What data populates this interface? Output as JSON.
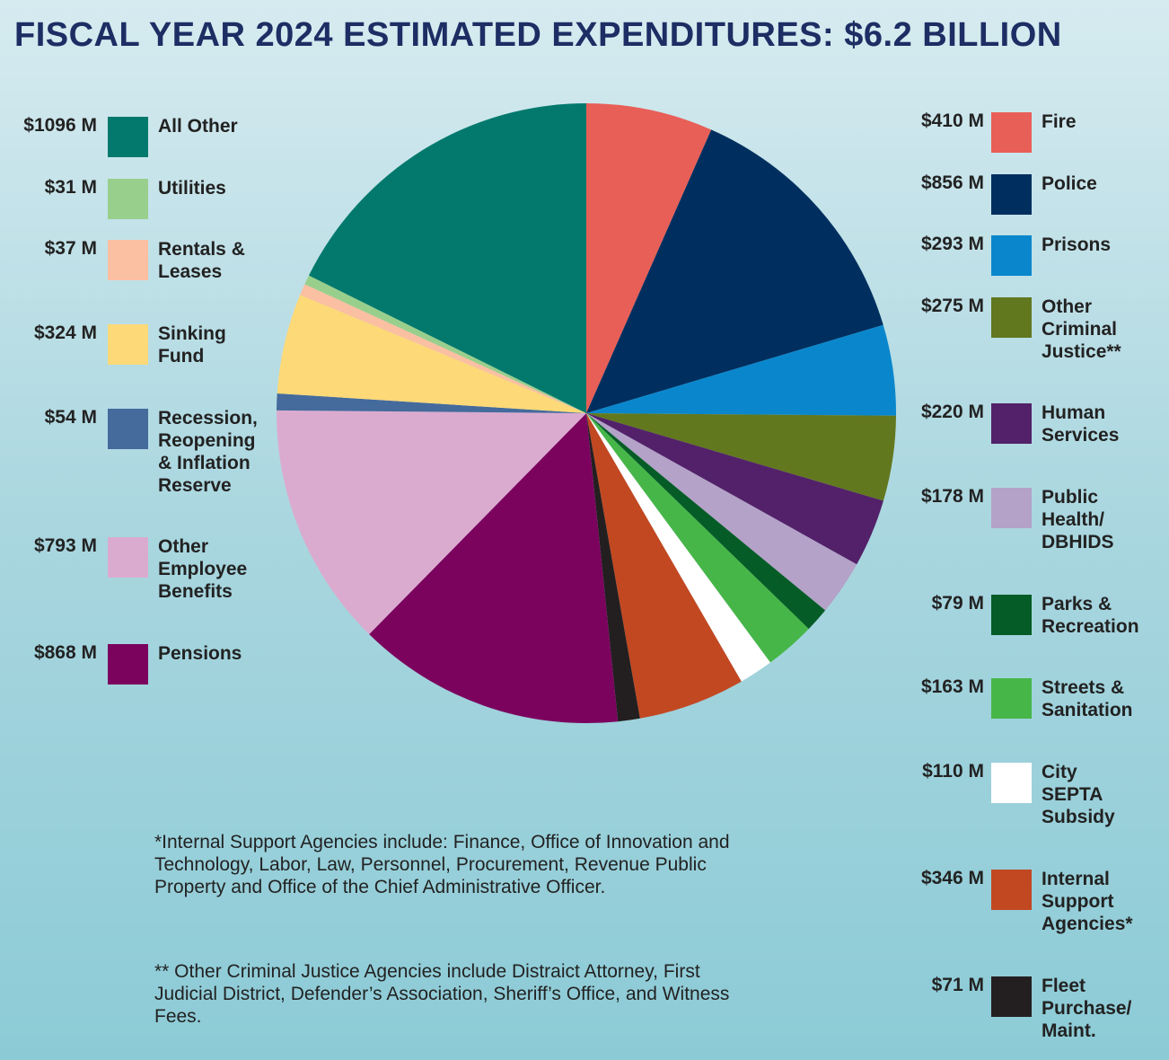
{
  "title": "FISCAL YEAR 2024 ESTIMATED EXPENDITURES: $6.2 BILLION",
  "chart_data": {
    "type": "pie",
    "title": "FISCAL YEAR 2024 ESTIMATED EXPENDITURES: $6.2 BILLION",
    "unit": "$M",
    "slices": [
      {
        "label": "Fire",
        "value_label": "$410 M",
        "value": 410,
        "color": "#e85f57"
      },
      {
        "label": "Police",
        "value_label": "$856 M",
        "value": 856,
        "color": "#002f5f"
      },
      {
        "label": "Prisons",
        "value_label": "$293 M",
        "value": 293,
        "color": "#0a87cc"
      },
      {
        "label": "Other\nCriminal\nJustice**",
        "value_label": "$275 M",
        "value": 275,
        "color": "#62781e"
      },
      {
        "label": "Human\nServices",
        "value_label": "$220 M",
        "value": 220,
        "color": "#532169"
      },
      {
        "label": "Public\nHealth/\nDBHIDS",
        "value_label": "$178 M",
        "value": 178,
        "color": "#b4a2c8"
      },
      {
        "label": "Parks &\nRecreation",
        "value_label": "$79 M",
        "value": 79,
        "color": "#065c26"
      },
      {
        "label": "Streets &\nSanitation",
        "value_label": "$163 M",
        "value": 163,
        "color": "#47b649"
      },
      {
        "label": "City\nSEPTA\nSubsidy",
        "value_label": "$110 M",
        "value": 110,
        "color": "#ffffff"
      },
      {
        "label": "Internal\nSupport\nAgencies*",
        "value_label": "$346 M",
        "value": 346,
        "color": "#c24822"
      },
      {
        "label": "Fleet\nPurchase/\nMaint.",
        "value_label": "$71 M",
        "value": 71,
        "color": "#231f20"
      },
      {
        "label": "Pensions",
        "value_label": "$868 M",
        "value": 868,
        "color": "#7b035e"
      },
      {
        "label": "Other\nEmployee\nBenefits",
        "value_label": "$793 M",
        "value": 793,
        "color": "#dbabcf"
      },
      {
        "label": "Recession,\nReopening\n& Inflation\nReserve",
        "value_label": "$54 M",
        "value": 54,
        "color": "#456a9c"
      },
      {
        "label": "Sinking\nFund",
        "value_label": "$324 M",
        "value": 324,
        "color": "#fdd978"
      },
      {
        "label": "Rentals &\nLeases",
        "value_label": "$37 M",
        "value": 37,
        "color": "#fbbfa2"
      },
      {
        "label": "Utilities",
        "value_label": "$31 M",
        "value": 31,
        "color": "#99cf8c"
      },
      {
        "label": "All Other",
        "value_label": "$1096 M",
        "value": 1096,
        "color": "#03796d"
      }
    ]
  },
  "notes": {
    "internal_support": "*Internal Support Agencies include: Finance, Office of Innovation and Technology, Labor, Law, Personnel, Procurement, Revenue Public Property and Office of the Chief Administrative Officer.",
    "criminal_justice": "** Other Criminal Justice Agencies include Distraict Attorney, First Judicial District, Defender’s Association, Sheriff’s Office, and Witness Fees."
  }
}
